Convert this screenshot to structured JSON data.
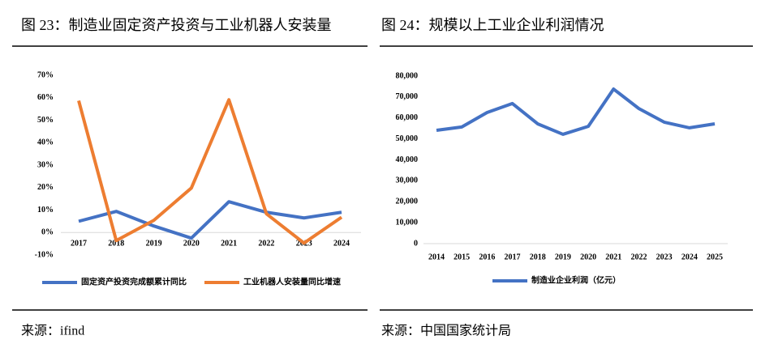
{
  "chart_data": [
    {
      "type": "line",
      "title": "图 23：制造业固定资产投资与工业机器人安装量",
      "source": "来源：ifind",
      "categories": [
        "2017",
        "2018",
        "2019",
        "2020",
        "2021",
        "2022",
        "2023",
        "2024"
      ],
      "series": [
        {
          "name": "固定资产投资完成额累计同比",
          "color": "#4472c4",
          "values": [
            5,
            9.4,
            2.9,
            -2.5,
            13.7,
            9,
            6.5,
            9
          ]
        },
        {
          "name": "工业机器人安装量同比增速",
          "color": "#ed7d31",
          "values": [
            58.7,
            -3.6,
            5.4,
            19.8,
            59.1,
            8.3,
            -4.7,
            6.8
          ]
        }
      ],
      "ylim": [
        -10,
        70
      ],
      "yticks": [
        {
          "value": -10,
          "label": "-10%"
        },
        {
          "value": 0,
          "label": "0%"
        },
        {
          "value": 10,
          "label": "10%"
        },
        {
          "value": 20,
          "label": "20%"
        },
        {
          "value": 30,
          "label": "30%"
        },
        {
          "value": 40,
          "label": "40%"
        },
        {
          "value": 50,
          "label": "50%"
        },
        {
          "value": 60,
          "label": "60%"
        },
        {
          "value": 70,
          "label": "70%"
        }
      ],
      "legend": "bottom"
    },
    {
      "type": "line",
      "title": "图 24：规模以上工业企业利润情况",
      "source": "来源：中国国家统计局",
      "categories": [
        "2014",
        "2015",
        "2016",
        "2017",
        "2018",
        "2019",
        "2020",
        "2021",
        "2022",
        "2023",
        "2024",
        "2025"
      ],
      "series": [
        {
          "name": "制造业企业利润（亿元）",
          "color": "#4472c4",
          "values": [
            54100,
            55700,
            62600,
            66900,
            57200,
            52200,
            56000,
            73800,
            64500,
            58000,
            55300,
            57200
          ]
        }
      ],
      "ylim": [
        0,
        80000
      ],
      "yticks": [
        0,
        {
          "value": 10000,
          "label": "10,000"
        },
        {
          "value": 20000,
          "label": "20,000"
        },
        {
          "value": 30000,
          "label": "30,000"
        },
        {
          "value": 40000,
          "label": "40,000"
        },
        {
          "value": 50000,
          "label": "50,000"
        },
        {
          "value": 60000,
          "label": "60,000"
        },
        {
          "value": 70000,
          "label": "70,000"
        },
        {
          "value": 80000,
          "label": "80,000"
        }
      ],
      "legend": "bottom"
    }
  ]
}
